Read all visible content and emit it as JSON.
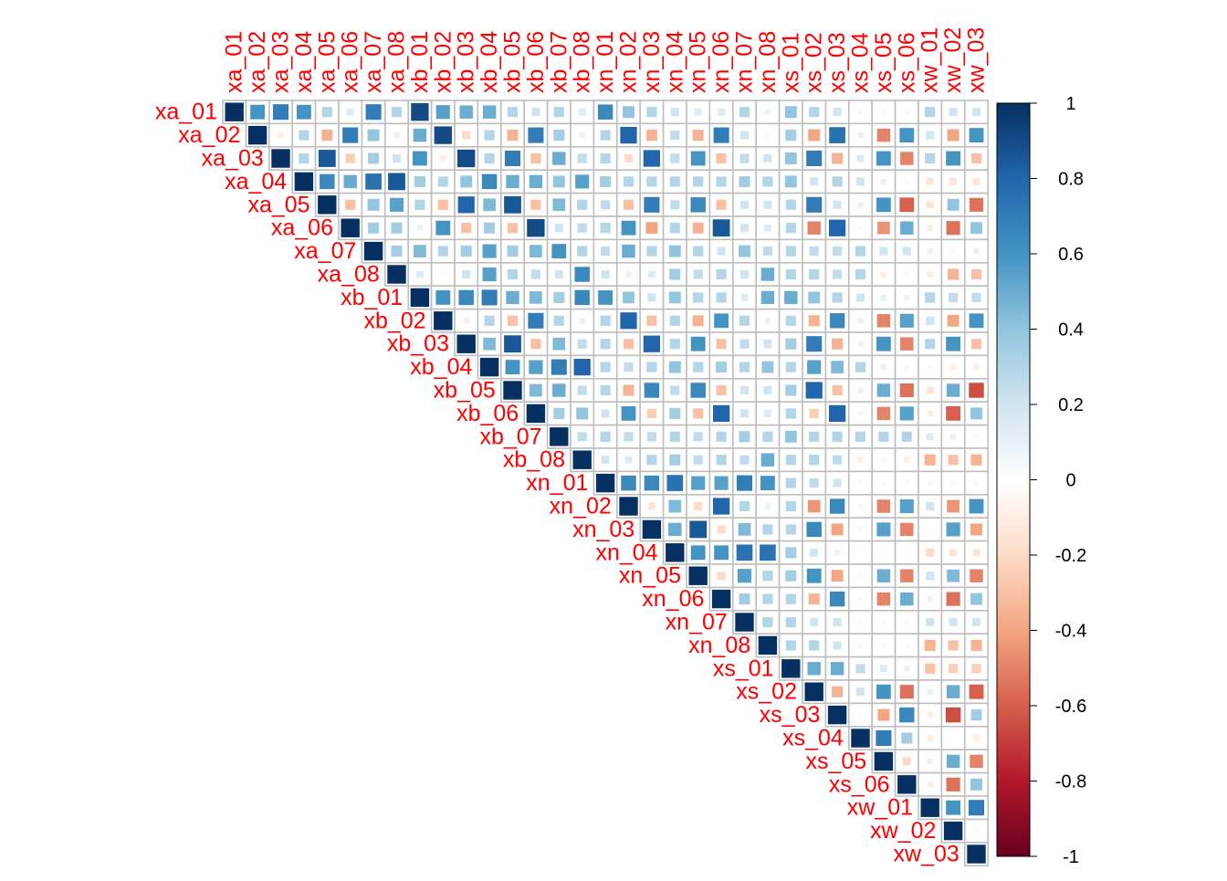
{
  "chart_data": {
    "type": "heatmap",
    "subtype": "correlation-matrix-upper-triangle",
    "variables": [
      "xa_01",
      "xa_02",
      "xa_03",
      "xa_04",
      "xa_05",
      "xa_06",
      "xa_07",
      "xa_08",
      "xb_01",
      "xb_02",
      "xb_03",
      "xb_04",
      "xb_05",
      "xb_06",
      "xb_07",
      "xb_08",
      "xn_01",
      "xn_02",
      "xn_03",
      "xn_04",
      "xn_05",
      "xn_06",
      "xn_07",
      "xn_08",
      "xs_01",
      "xs_02",
      "xs_03",
      "xs_04",
      "xs_05",
      "xs_06",
      "xw_01",
      "xw_02",
      "xw_03"
    ],
    "values_upper": [
      [
        1,
        0.6,
        0.7,
        0.6,
        0.3,
        0.15,
        0.7,
        0.3,
        0.9,
        0.55,
        0.5,
        0.5,
        0.3,
        0.2,
        0.3,
        0.15,
        0.65,
        0.4,
        0.3,
        0.2,
        0.15,
        0.15,
        0.3,
        0.1,
        0.4,
        0.3,
        0.2,
        0.05,
        0.05,
        0.05,
        0.3,
        0.2,
        0.2
      ],
      [
        1,
        -0.1,
        0.3,
        -0.35,
        0.7,
        0.4,
        0.1,
        0.5,
        0.9,
        -0.2,
        0.3,
        -0.35,
        0.7,
        0.35,
        0.1,
        0.3,
        0.8,
        -0.35,
        0.25,
        -0.35,
        0.7,
        0.2,
        0.05,
        0.35,
        -0.4,
        0.75,
        0.1,
        -0.5,
        0.6,
        0.2,
        -0.4,
        0.6
      ],
      [
        1,
        0.3,
        0.85,
        -0.25,
        0.35,
        0.2,
        0.6,
        -0.1,
        0.9,
        0.3,
        0.7,
        -0.3,
        0.5,
        0.25,
        0.3,
        -0.2,
        0.8,
        0.25,
        0.6,
        -0.3,
        0.25,
        0.2,
        0.4,
        0.7,
        -0.35,
        0.15,
        0.6,
        -0.5,
        0.3,
        0.6,
        -0.3
      ],
      [
        1,
        0.65,
        0.5,
        0.75,
        0.85,
        0.35,
        0.3,
        0.4,
        0.65,
        0.5,
        0.5,
        0.4,
        0.55,
        0.35,
        0.3,
        0.3,
        0.3,
        0.3,
        0.3,
        0.35,
        0.3,
        0.4,
        0.2,
        0.3,
        0.2,
        0.1,
        0.05,
        -0.15,
        -0.15,
        -0.15
      ],
      [
        1,
        -0.3,
        0.4,
        0.55,
        0.3,
        -0.3,
        0.8,
        0.45,
        0.85,
        -0.3,
        0.45,
        0.3,
        0.25,
        -0.3,
        0.7,
        0.25,
        0.65,
        -0.3,
        0.2,
        0.2,
        0.3,
        0.7,
        0.2,
        0.1,
        0.6,
        -0.6,
        -0.15,
        0.4,
        -0.55
      ],
      [
        1,
        0.35,
        0.35,
        0.1,
        0.6,
        -0.3,
        0.35,
        -0.3,
        0.9,
        0.2,
        0.25,
        0.3,
        0.6,
        -0.4,
        0.3,
        -0.35,
        0.85,
        0.2,
        0.15,
        0.3,
        -0.5,
        0.8,
        0.05,
        -0.45,
        0.5,
        -0.1,
        -0.55,
        0.4
      ],
      [
        1,
        0.35,
        0.45,
        0.3,
        0.35,
        0.55,
        0.35,
        0.45,
        0.6,
        0.3,
        0.25,
        0.5,
        0.3,
        0.4,
        0.3,
        0.2,
        0.4,
        0.25,
        0.3,
        0.25,
        0.25,
        0.3,
        0.2,
        0.2,
        0.1,
        0.05,
        0.1
      ],
      [
        1,
        0.15,
        0.05,
        0.2,
        0.55,
        0.3,
        0.25,
        0.2,
        0.65,
        0.2,
        0.1,
        0.15,
        0.35,
        0.25,
        0.3,
        0.2,
        0.5,
        0.3,
        0.3,
        0.25,
        0.3,
        -0.1,
        0.05,
        -0.1,
        -0.35,
        -0.3,
        -0.35
      ],
      [
        1,
        0.6,
        0.65,
        0.7,
        0.5,
        0.45,
        0.35,
        0.65,
        0.6,
        0.4,
        0.2,
        0.4,
        0.3,
        0.3,
        0.15,
        0.5,
        0.5,
        0.4,
        0.3,
        0.2,
        0.1,
        0.1,
        0.3,
        0.25,
        0.25
      ],
      [
        1,
        -0.1,
        0.3,
        -0.3,
        0.7,
        0.3,
        0.1,
        0.3,
        0.8,
        -0.3,
        0.3,
        -0.35,
        0.6,
        0.3,
        0.1,
        0.3,
        -0.35,
        0.65,
        0.1,
        -0.5,
        0.55,
        0.2,
        -0.4,
        0.6
      ],
      [
        1,
        0.45,
        0.85,
        -0.3,
        0.45,
        0.25,
        0.3,
        -0.3,
        0.8,
        0.3,
        0.6,
        -0.3,
        0.25,
        0.2,
        0.35,
        0.7,
        -0.35,
        0.1,
        0.6,
        -0.5,
        0.3,
        0.6,
        -0.3
      ],
      [
        1,
        0.6,
        0.55,
        0.7,
        0.8,
        0.3,
        0.25,
        0.3,
        0.4,
        0.3,
        0.35,
        0.3,
        0.4,
        0.3,
        0.55,
        0.45,
        0.3,
        0.1,
        0.05,
        0.05,
        -0.1,
        -0.1,
        -0.1
      ],
      [
        1,
        0.45,
        0.5,
        0.25,
        0.3,
        -0.35,
        0.65,
        0.25,
        0.65,
        -0.3,
        0.2,
        0.2,
        0.35,
        0.8,
        -0.3,
        0.1,
        0.5,
        -0.55,
        -0.15,
        0.5,
        -0.65
      ],
      [
        1,
        0.35,
        0.4,
        0.2,
        0.6,
        -0.25,
        0.35,
        -0.3,
        0.8,
        0.2,
        0.15,
        0.3,
        -0.25,
        0.8,
        0.05,
        -0.5,
        0.55,
        -0.1,
        -0.6,
        0.4
      ],
      [
        1,
        0.25,
        0.3,
        0.25,
        0.25,
        0.3,
        0.25,
        0.3,
        0.35,
        0.3,
        0.4,
        0.3,
        0.3,
        0.3,
        0.3,
        0.3,
        0.15,
        0.1,
        0.05
      ],
      [
        1,
        0.2,
        0.15,
        0.3,
        0.35,
        0.25,
        0.3,
        0.25,
        0.5,
        0.3,
        0.3,
        0.25,
        -0.1,
        0.05,
        -0.1,
        -0.35,
        -0.3,
        -0.35
      ],
      [
        1,
        0.65,
        0.65,
        0.75,
        0.55,
        0.55,
        0.7,
        0.6,
        0.3,
        0.25,
        0.2,
        0.05,
        0.05,
        0.05,
        0.05,
        0.05,
        0.05
      ],
      [
        1,
        -0.15,
        0.45,
        -0.2,
        0.8,
        0.3,
        0.1,
        0.3,
        -0.45,
        0.65,
        0.05,
        -0.5,
        0.55,
        0.2,
        -0.45,
        0.6
      ],
      [
        1,
        0.5,
        0.85,
        -0.2,
        0.45,
        0.3,
        0.3,
        0.65,
        -0.4,
        0.05,
        0.55,
        -0.5,
        0.0,
        0.55,
        -0.4
      ],
      [
        1,
        0.6,
        0.6,
        0.75,
        0.75,
        0.35,
        0.2,
        0.1,
        0.0,
        0.0,
        0.0,
        -0.2,
        -0.15,
        -0.15
      ],
      [
        1,
        -0.2,
        0.55,
        0.3,
        0.35,
        0.6,
        -0.4,
        0.05,
        0.5,
        -0.5,
        0.2,
        0.45,
        -0.5
      ],
      [
        1,
        0.35,
        0.3,
        0.3,
        -0.35,
        0.65,
        0.05,
        -0.5,
        0.5,
        -0.1,
        -0.55,
        0.4
      ],
      [
        1,
        0.3,
        0.3,
        0.2,
        0.2,
        0.05,
        0.05,
        0.05,
        0.2,
        0.2,
        0.2
      ],
      [
        1,
        0.3,
        0.3,
        0.2,
        0.05,
        0.05,
        0.05,
        -0.35,
        -0.3,
        -0.35
      ],
      [
        1,
        0.5,
        0.5,
        0.25,
        0.15,
        0.1,
        -0.3,
        -0.25,
        -0.25
      ],
      [
        1,
        -0.35,
        0.2,
        0.6,
        -0.55,
        0.1,
        0.5,
        -0.6
      ],
      [
        1,
        0.05,
        -0.4,
        0.65,
        -0.1,
        -0.65,
        0.35
      ],
      [
        1,
        0.7,
        0.35,
        -0.1,
        0.0,
        -0.1
      ],
      [
        1,
        -0.2,
        0.1,
        0.5,
        -0.5
      ],
      [
        1,
        -0.1,
        -0.55,
        0.4
      ],
      [
        1,
        0.6,
        0.7
      ],
      [
        1,
        -0.05
      ],
      [
        1
      ]
    ],
    "colorbar": {
      "range": [
        -1,
        1
      ],
      "tick_labels": [
        "1",
        "0.8",
        "0.6",
        "0.4",
        "0.2",
        "0",
        "-0.2",
        "-0.4",
        "-0.6",
        "-0.8",
        "-1"
      ]
    },
    "colors": {
      "label": "#ff0000",
      "grid": "#bebebe",
      "scale": [
        "#67001f",
        "#b2182b",
        "#d6604d",
        "#f4a582",
        "#fddbc7",
        "#ffffff",
        "#d1e5f0",
        "#92c5de",
        "#4393c3",
        "#2166ac",
        "#053061"
      ]
    }
  }
}
